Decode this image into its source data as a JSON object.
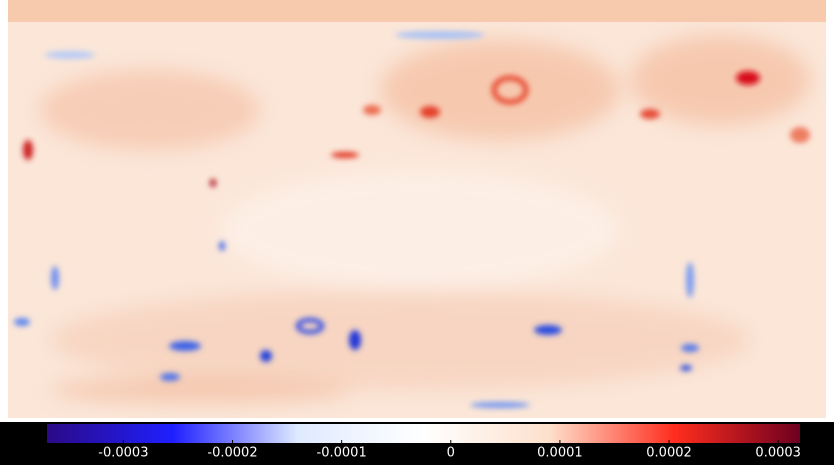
{
  "colorbar": {
    "range": [
      -0.00037,
      0.00032
    ],
    "ticks": [
      -0.0003,
      -0.0002,
      -0.0001,
      0,
      0.0001,
      0.0002,
      0.0003
    ],
    "colors": [
      "#2b0a86",
      "#1f1fff",
      "#dfeaff",
      "#ffffff",
      "#fde0cc",
      "#ff2d1e",
      "#6e0020"
    ]
  }
}
